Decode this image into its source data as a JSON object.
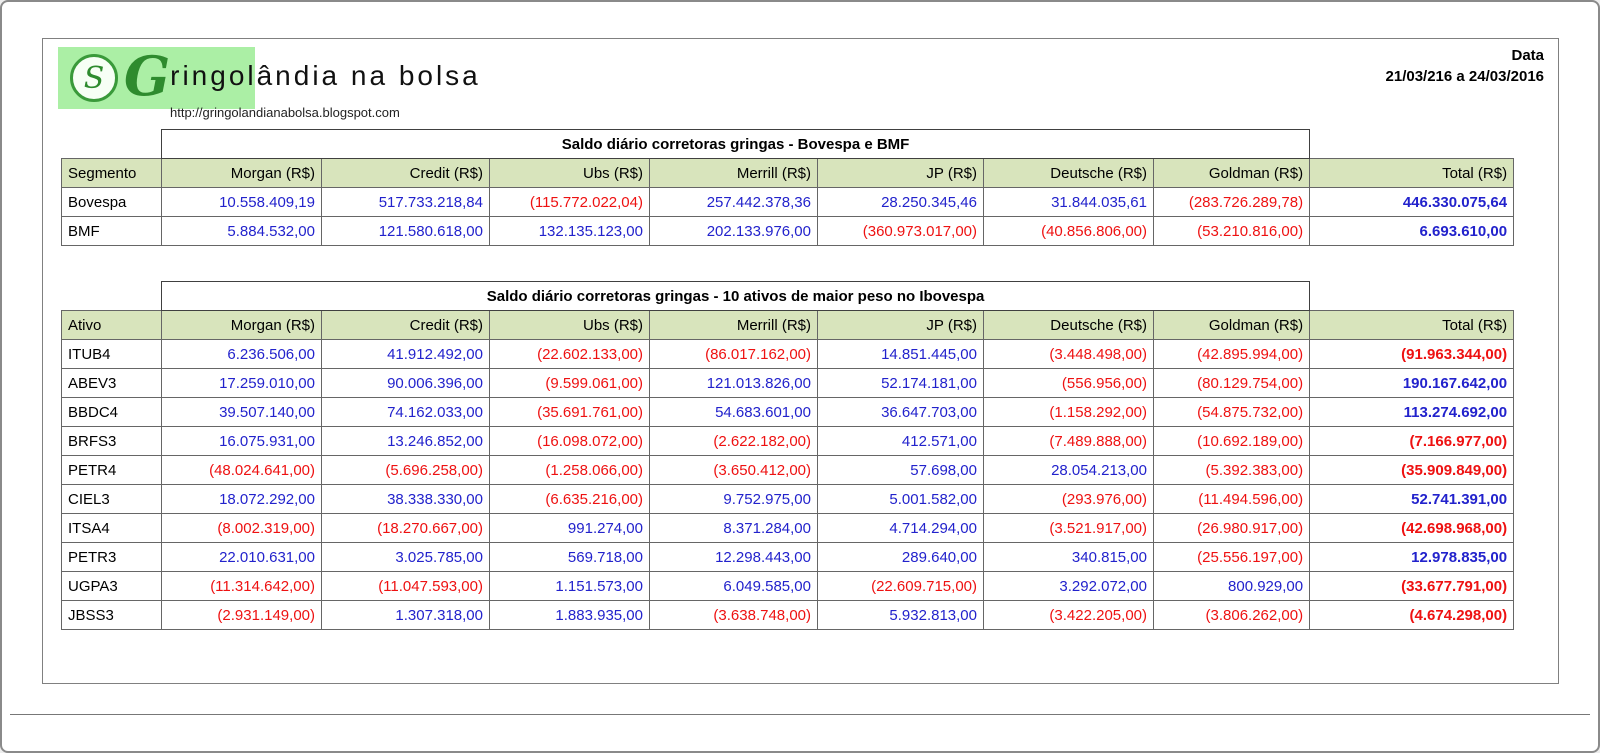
{
  "header": {
    "logo_icon": "monogram-s-icon",
    "logo_glyph": "S",
    "brand_initial": "G",
    "brand_rest": "ringolândia na bolsa",
    "url": "http://gringolandianabolsa.blogspot.com",
    "date_label": "Data",
    "date_value": "21/03/216 a 24/03/2016"
  },
  "colors": {
    "positive": "#2222cc",
    "negative": "#ee1111",
    "header_bg": "#d8e4bc",
    "logo_bg": "#abefa5",
    "brand_green": "#2e8b2e"
  },
  "tables": [
    {
      "title": "Saldo diário corretoras gringas - Bovespa e BMF",
      "row_header": "Segmento",
      "columns": [
        "Morgan (R$)",
        "Credit (R$)",
        "Ubs (R$)",
        "Merrill (R$)",
        "JP (R$)",
        "Deutsche (R$)",
        "Goldman (R$)",
        "Total (R$)"
      ],
      "rows": [
        {
          "label": "Bovespa",
          "values": [
            "10.558.409,19",
            "517.733.218,84",
            "(115.772.022,04)",
            "257.442.378,36",
            "28.250.345,46",
            "31.844.035,61",
            "(283.726.289,78)",
            "446.330.075,64"
          ]
        },
        {
          "label": "BMF",
          "values": [
            "5.884.532,00",
            "121.580.618,00",
            "132.135.123,00",
            "202.133.976,00",
            "(360.973.017,00)",
            "(40.856.806,00)",
            "(53.210.816,00)",
            "6.693.610,00"
          ]
        }
      ]
    },
    {
      "title": "Saldo diário corretoras gringas - 10 ativos de maior peso no Ibovespa",
      "row_header": "Ativo",
      "columns": [
        "Morgan (R$)",
        "Credit (R$)",
        "Ubs (R$)",
        "Merrill (R$)",
        "JP (R$)",
        "Deutsche (R$)",
        "Goldman (R$)",
        "Total (R$)"
      ],
      "rows": [
        {
          "label": "ITUB4",
          "values": [
            "6.236.506,00",
            "41.912.492,00",
            "(22.602.133,00)",
            "(86.017.162,00)",
            "14.851.445,00",
            "(3.448.498,00)",
            "(42.895.994,00)",
            "(91.963.344,00)"
          ]
        },
        {
          "label": "ABEV3",
          "values": [
            "17.259.010,00",
            "90.006.396,00",
            "(9.599.061,00)",
            "121.013.826,00",
            "52.174.181,00",
            "(556.956,00)",
            "(80.129.754,00)",
            "190.167.642,00"
          ]
        },
        {
          "label": "BBDC4",
          "values": [
            "39.507.140,00",
            "74.162.033,00",
            "(35.691.761,00)",
            "54.683.601,00",
            "36.647.703,00",
            "(1.158.292,00)",
            "(54.875.732,00)",
            "113.274.692,00"
          ]
        },
        {
          "label": "BRFS3",
          "values": [
            "16.075.931,00",
            "13.246.852,00",
            "(16.098.072,00)",
            "(2.622.182,00)",
            "412.571,00",
            "(7.489.888,00)",
            "(10.692.189,00)",
            "(7.166.977,00)"
          ]
        },
        {
          "label": "PETR4",
          "values": [
            "(48.024.641,00)",
            "(5.696.258,00)",
            "(1.258.066,00)",
            "(3.650.412,00)",
            "57.698,00",
            "28.054.213,00",
            "(5.392.383,00)",
            "(35.909.849,00)"
          ]
        },
        {
          "label": "CIEL3",
          "values": [
            "18.072.292,00",
            "38.338.330,00",
            "(6.635.216,00)",
            "9.752.975,00",
            "5.001.582,00",
            "(293.976,00)",
            "(11.494.596,00)",
            "52.741.391,00"
          ]
        },
        {
          "label": "ITSA4",
          "values": [
            "(8.002.319,00)",
            "(18.270.667,00)",
            "991.274,00",
            "8.371.284,00",
            "4.714.294,00",
            "(3.521.917,00)",
            "(26.980.917,00)",
            "(42.698.968,00)"
          ]
        },
        {
          "label": "PETR3",
          "values": [
            "22.010.631,00",
            "3.025.785,00",
            "569.718,00",
            "12.298.443,00",
            "289.640,00",
            "340.815,00",
            "(25.556.197,00)",
            "12.978.835,00"
          ]
        },
        {
          "label": "UGPA3",
          "values": [
            "(11.314.642,00)",
            "(11.047.593,00)",
            "1.151.573,00",
            "6.049.585,00",
            "(22.609.715,00)",
            "3.292.072,00",
            "800.929,00",
            "(33.677.791,00)"
          ]
        },
        {
          "label": "JBSS3",
          "values": [
            "(2.931.149,00)",
            "1.307.318,00",
            "1.883.935,00",
            "(3.638.748,00)",
            "5.932.813,00",
            "(3.422.205,00)",
            "(3.806.262,00)",
            "(4.674.298,00)"
          ]
        }
      ]
    }
  ]
}
